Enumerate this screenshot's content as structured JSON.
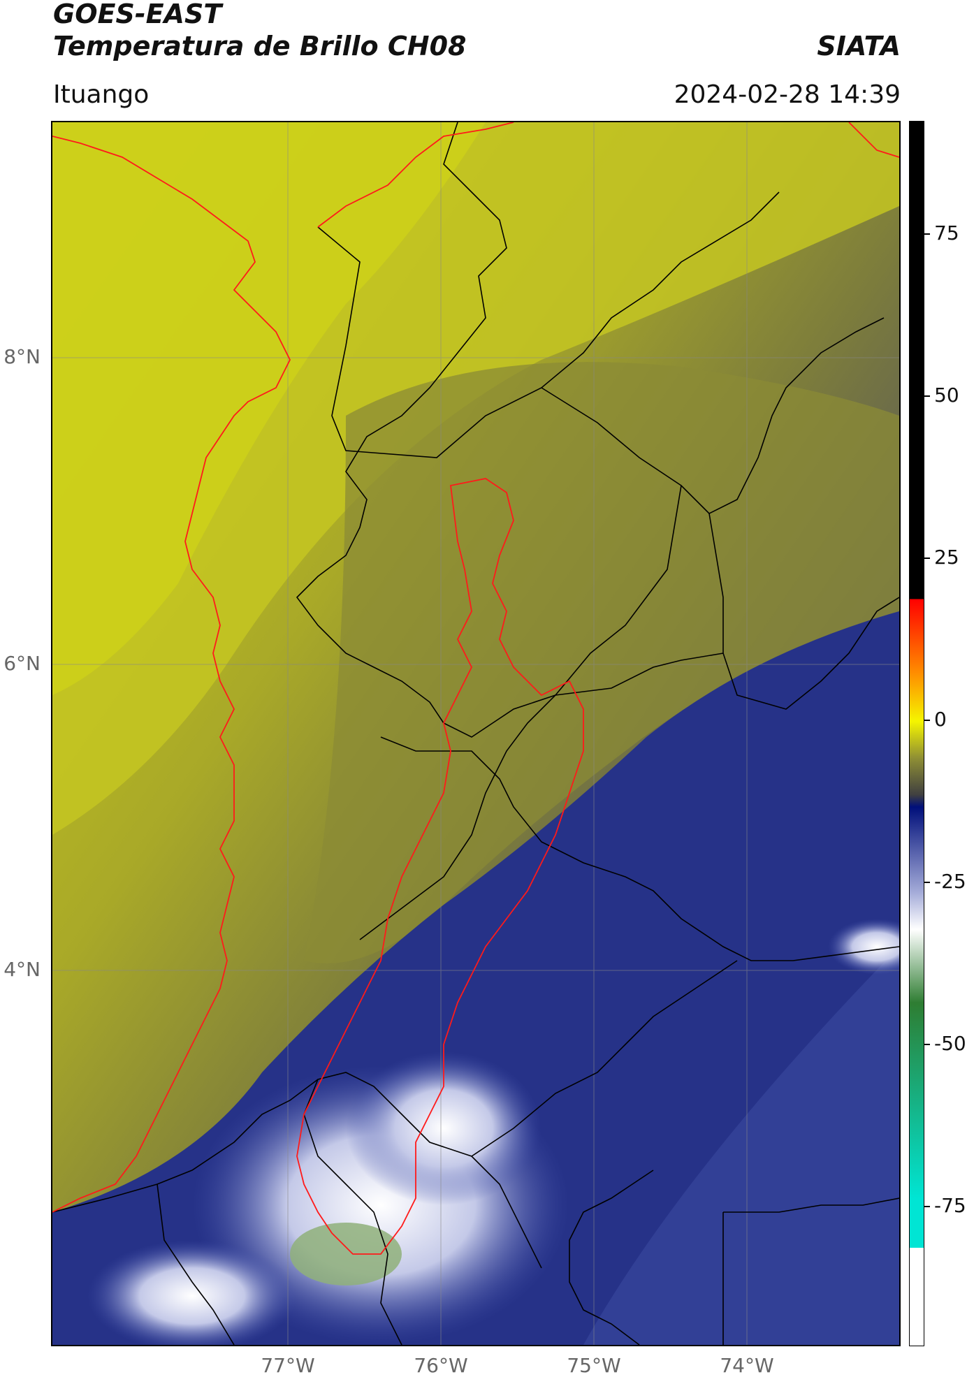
{
  "header": {
    "satellite": "GOES-EAST",
    "product": "Temperatura de Brillo CH08",
    "organization": "SIATA",
    "location": "Ituango",
    "timestamp": "2024-02-28 14:39"
  },
  "map": {
    "lat_ticks": [
      "8°N",
      "6°N",
      "4°N"
    ],
    "lon_ticks": [
      "77°W",
      "76°W",
      "75°W",
      "74°W"
    ],
    "colors": {
      "warm_yellow": "#c9cc1c",
      "olive": "#8f9030",
      "gray": "#5a5a58",
      "blue_dark": "#1a237e",
      "blue_mid": "#3f4ea8",
      "blue_light": "#b8bfe3",
      "white": "#f2f3fa",
      "green": "#8fb07a",
      "outline_red": "#ff1a1a",
      "border_black": "#000000"
    }
  },
  "colorbar": {
    "ticks": [
      "75",
      "50",
      "25",
      "0",
      "-25",
      "-50",
      "-75"
    ],
    "range": [
      -97,
      92
    ],
    "colors": {
      "black": "#000000",
      "red": "#ff0000",
      "orange": "#ff8c00",
      "yellow": "#f5f500",
      "olive": "#8f8f34",
      "gray": "#404040",
      "navy": "#000f7a",
      "periwinkle": "#a5acd9",
      "white": "#ffffff",
      "green": "#2e7d32",
      "cyan": "#00e5d4"
    }
  }
}
